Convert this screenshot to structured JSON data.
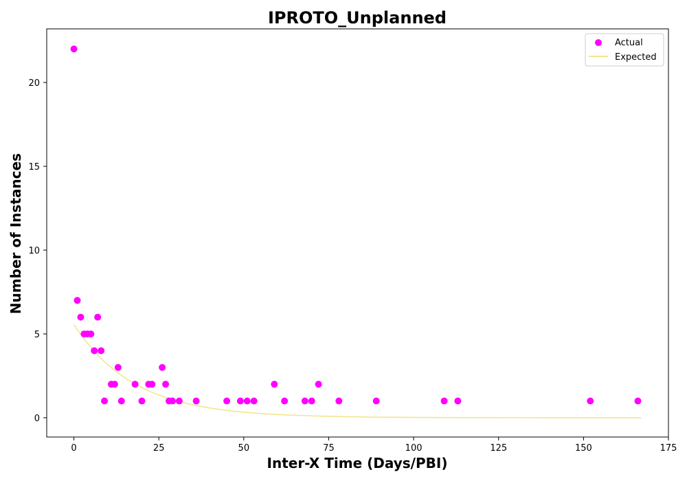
{
  "chart_data": {
    "type": "scatter",
    "title": "IPROTO_Unplanned",
    "xlabel": "Inter-X Time (Days/PBI)",
    "ylabel": "Number of Instances",
    "xlim": [
      -8,
      175
    ],
    "ylim": [
      -1.15,
      23.2
    ],
    "xticks": [
      0,
      25,
      50,
      75,
      100,
      125,
      150,
      175
    ],
    "yticks": [
      0,
      5,
      10,
      15,
      20
    ],
    "grid": false,
    "legend_placement": "top-right",
    "colors": {
      "actual": "#ff00ff",
      "expected": "#f0e68c",
      "axes": "#000000",
      "background": "#ffffff"
    },
    "series": [
      {
        "name": "Actual",
        "kind": "scatter",
        "x": [
          0,
          1,
          2,
          3,
          4,
          5,
          6,
          7,
          8,
          9,
          11,
          12,
          13,
          14,
          18,
          20,
          22,
          23,
          26,
          27,
          28,
          29,
          31,
          36,
          45,
          49,
          51,
          53,
          59,
          62,
          68,
          70,
          72,
          78,
          89,
          109,
          113,
          152,
          166
        ],
        "y": [
          22,
          7,
          6,
          5,
          5,
          5,
          4,
          6,
          4,
          1,
          2,
          2,
          3,
          1,
          2,
          1,
          2,
          2,
          3,
          2,
          1,
          1,
          1,
          1,
          1,
          1,
          1,
          1,
          2,
          1,
          1,
          1,
          2,
          1,
          1,
          1,
          1,
          1,
          1
        ]
      },
      {
        "name": "Expected",
        "kind": "line",
        "x": [
          0,
          3,
          6,
          9,
          12,
          15,
          18,
          21,
          24,
          27,
          30,
          35,
          40,
          45,
          50,
          55,
          60,
          70,
          80,
          90,
          100,
          110,
          125,
          140,
          155,
          167
        ],
        "y": [
          5.55,
          4.69,
          3.96,
          3.34,
          2.82,
          2.38,
          2.01,
          1.7,
          1.43,
          1.21,
          1.02,
          0.77,
          0.58,
          0.44,
          0.33,
          0.25,
          0.19,
          0.11,
          0.06,
          0.03,
          0.02,
          0.01,
          0.004,
          0.002,
          0.001,
          0.0003
        ]
      }
    ]
  }
}
